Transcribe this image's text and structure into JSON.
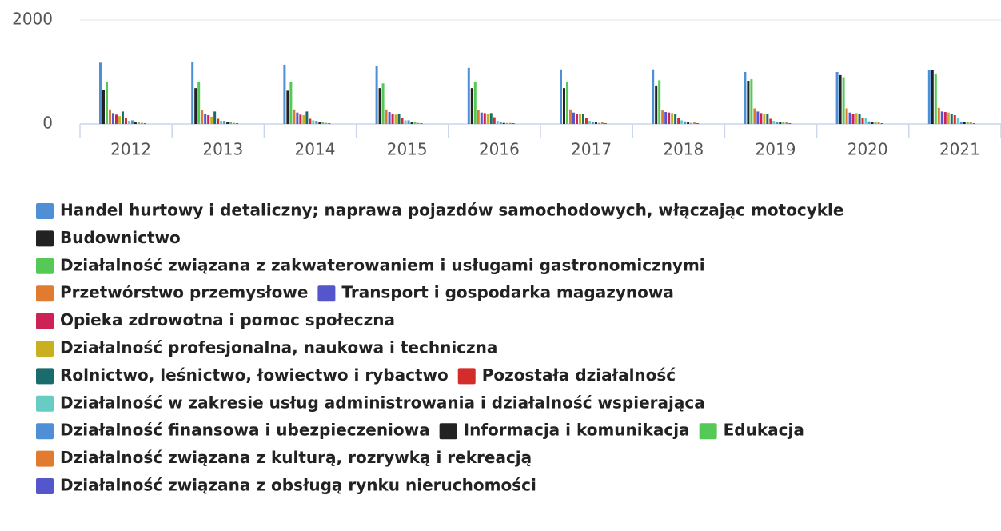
{
  "chart_data": {
    "type": "bar",
    "categories": [
      "2012",
      "2013",
      "2014",
      "2015",
      "2016",
      "2017",
      "2018",
      "2019",
      "2020",
      "2021"
    ],
    "ylim": [
      0,
      2000
    ],
    "yticks": [
      0,
      2000
    ],
    "grid": true,
    "series": [
      {
        "name": "Handel hurtowy i detaliczny; naprawa pojazdów samochodowych, włączając motocykle",
        "color": "#4f8fd5",
        "values": [
          1180,
          1190,
          1140,
          1110,
          1080,
          1050,
          1050,
          1000,
          1000,
          1040
        ]
      },
      {
        "name": "Budownictwo",
        "color": "#222222",
        "values": [
          660,
          690,
          640,
          690,
          690,
          690,
          740,
          830,
          940,
          1040
        ]
      },
      {
        "name": "Działalność związana z zakwaterowaniem i usługami gastronomicznymi",
        "color": "#55c955",
        "values": [
          810,
          810,
          810,
          780,
          810,
          810,
          840,
          860,
          900,
          970
        ]
      },
      {
        "name": "Przetwórstwo przemysłowe",
        "color": "#e07b2f",
        "values": [
          280,
          270,
          280,
          280,
          270,
          280,
          260,
          300,
          300,
          310
        ]
      },
      {
        "name": "Transport i gospodarka magazynowa",
        "color": "#5555cc",
        "values": [
          210,
          200,
          220,
          230,
          220,
          220,
          230,
          240,
          220,
          240
        ]
      },
      {
        "name": "Opieka zdrowotna i pomoc społeczna",
        "color": "#cc2255",
        "values": [
          180,
          170,
          180,
          200,
          210,
          200,
          220,
          210,
          200,
          230
        ]
      },
      {
        "name": "Działalność profesjonalna, naukowa i techniczna",
        "color": "#c8b020",
        "values": [
          150,
          140,
          170,
          180,
          200,
          190,
          210,
          200,
          210,
          220
        ]
      },
      {
        "name": "Rolnictwo, leśnictwo, łowiectwo i rybactwo",
        "color": "#1a6b6b",
        "values": [
          240,
          240,
          240,
          200,
          210,
          200,
          200,
          200,
          200,
          200
        ]
      },
      {
        "name": "Pozostała działalność",
        "color": "#d42b2b",
        "values": [
          110,
          100,
          100,
          110,
          130,
          110,
          110,
          100,
          110,
          170
        ]
      },
      {
        "name": "Działalność w zakresie usług administrowania i działalność wspierająca",
        "color": "#66ccc4",
        "values": [
          60,
          60,
          70,
          70,
          60,
          60,
          70,
          60,
          110,
          110
        ]
      },
      {
        "name": "Działalność finansowa i ubezpieczeniowa",
        "color": "#4f8fd5",
        "values": [
          70,
          60,
          60,
          70,
          40,
          40,
          50,
          40,
          50,
          40
        ]
      },
      {
        "name": "Informacja i komunikacja",
        "color": "#222222",
        "values": [
          30,
          30,
          30,
          30,
          20,
          30,
          30,
          40,
          40,
          40
        ]
      },
      {
        "name": "Edukacja",
        "color": "#55c955",
        "values": [
          40,
          40,
          30,
          30,
          20,
          20,
          20,
          30,
          40,
          40
        ]
      },
      {
        "name": "Działalność związana z kulturą, rozrywką i rekreacją",
        "color": "#e07b2f",
        "values": [
          20,
          20,
          20,
          20,
          20,
          30,
          30,
          30,
          40,
          30
        ]
      },
      {
        "name": "Działalność związana z obsługą rynku nieruchomości",
        "color": "#5555cc",
        "values": [
          15,
          15,
          15,
          15,
          15,
          15,
          15,
          15,
          15,
          15
        ]
      }
    ]
  }
}
